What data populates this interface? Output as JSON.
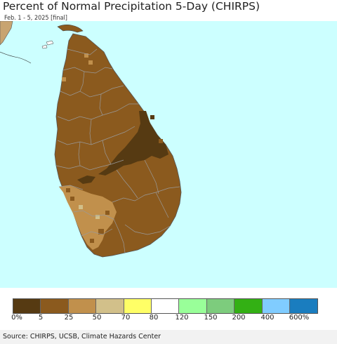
{
  "title": "Percent of Normal Precipitation 5-Day (CHIRPS)",
  "subtitle": "Feb. 1 - 5, 2025 [final]",
  "source": "Source: CHIRPS, UCSB, Climate Hazards Center",
  "colors": {
    "ocean": "#ccffff",
    "land_base": "#8b5a1e",
    "very_dry": "#563a12",
    "dry_light": "#c1904c",
    "neighbor_land": "#c8a471"
  },
  "legend": {
    "colors": [
      "#563a12",
      "#8b5a1e",
      "#c1904c",
      "#d2c08a",
      "#ffff66",
      "#ffffff",
      "#99ff99",
      "#7dcc7d",
      "#33b014",
      "#80ccff",
      "#1a7dbf"
    ],
    "labels": [
      "0%",
      "5",
      "25",
      "50",
      "70",
      "80",
      "120",
      "150",
      "200",
      "400",
      "600%"
    ]
  }
}
